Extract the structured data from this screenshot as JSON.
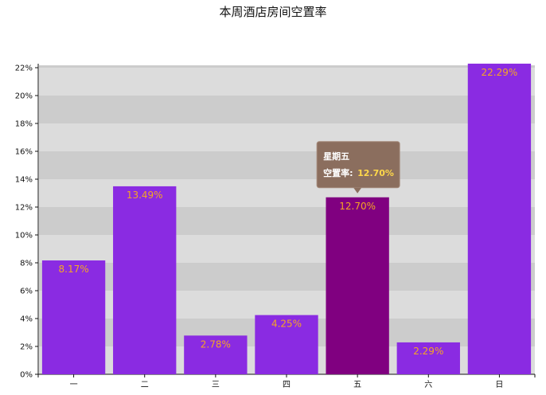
{
  "chart_data": {
    "type": "bar",
    "title": "本周酒店房间空置率",
    "categories": [
      "一",
      "二",
      "三",
      "四",
      "五",
      "六",
      "日"
    ],
    "values": [
      8.17,
      13.49,
      2.78,
      4.25,
      12.7,
      2.29,
      22.29
    ],
    "value_labels": [
      "8.17%",
      "13.49%",
      "2.78%",
      "4.25%",
      "12.70%",
      "2.29%",
      "22.29%"
    ],
    "ylim": [
      0,
      22
    ],
    "yticks": [
      0,
      2,
      4,
      6,
      8,
      10,
      12,
      14,
      16,
      18,
      20,
      22
    ],
    "ytick_labels": [
      "0%",
      "2%",
      "4%",
      "6%",
      "8%",
      "10%",
      "12%",
      "14%",
      "16%",
      "18%",
      "20%",
      "22%"
    ],
    "xlabel": "",
    "ylabel": "",
    "grid": "alternating bands",
    "bar_color": "#8a2be2",
    "highlight_color": "#800080",
    "band_colors": [
      "#dcdcdc",
      "#cccccc"
    ],
    "label_color": "#f5a623",
    "highlighted_index": 4,
    "tooltip": {
      "title": "星期五",
      "series_label": "空置率:",
      "value": "12.70%",
      "background": "#8b6e5e",
      "value_color": "#ffd84a"
    }
  }
}
